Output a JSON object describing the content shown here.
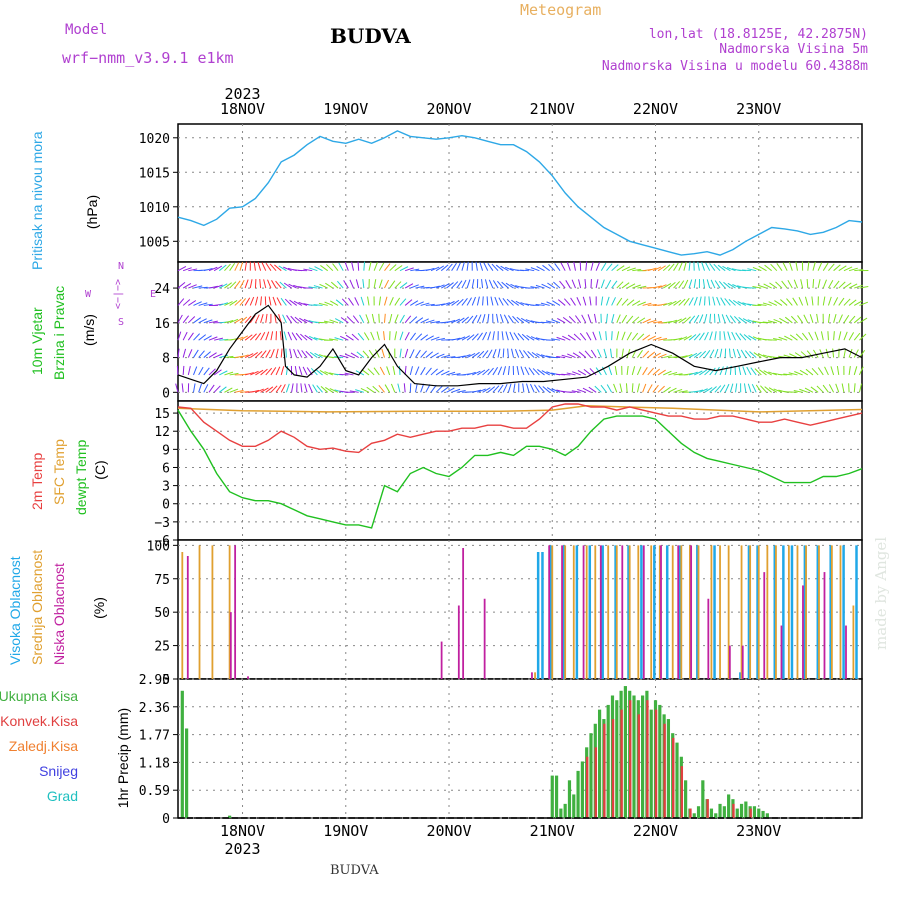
{
  "header": {
    "model_label": "Model",
    "model_name": "wrf−nmm_v3.9.1  e1km",
    "station": "BUDVA",
    "meteogram": "Meteogram",
    "lonlat": "lon,lat (18.8125E, 42.2875N)",
    "elevation": "Nadmorska Visina 5m",
    "model_elevation": "Nadmorska Visina u modelu 60.4388m",
    "footer_station": "BUDVA",
    "credit": "made by Angel"
  },
  "colors": {
    "pressure": "#2ea8e6",
    "t2m": "#e84040",
    "sfc": "#e0a030",
    "dewpt": "#20c020",
    "high_cloud": "#20a8e8",
    "mid_cloud": "#e0a030",
    "low_cloud": "#c020a0",
    "total_precip": "#40b040",
    "conv_precip": "#e04040",
    "freezing": "#f08030",
    "snow": "#4040e0",
    "hail": "#20c0c0"
  },
  "time_axis": {
    "days": [
      "18NOV",
      "19NOV",
      "20NOV",
      "21NOV",
      "22NOV",
      "23NOV"
    ],
    "year": "2023",
    "start_hour": -15,
    "end_hour": 144
  },
  "panels": {
    "pressure": {
      "title": "Pritisak na nivou mora",
      "unit": "(hPa)",
      "ticks": [
        "1005",
        "1010",
        "1015",
        "1020"
      ],
      "ylim": [
        1002,
        1022
      ]
    },
    "wind": {
      "title1": "10m Vjetar",
      "title2": "Brzina i Pravac",
      "unit": "(m/s)",
      "ticks": [
        "0",
        "8",
        "16",
        "24"
      ],
      "ylim": [
        -2,
        30
      ],
      "compass_n": "N",
      "compass_e": "E",
      "compass_s": "S",
      "compass_w": "W",
      "compass_symbol": "<−|−>"
    },
    "temp": {
      "title1": "2m Temp",
      "title2": "SFC Temp",
      "title3": "dewpt Temp",
      "unit": "(C)",
      "ticks": [
        "−6",
        "−3",
        "0",
        "3",
        "6",
        "9",
        "12",
        "15"
      ],
      "ylim": [
        -6,
        17
      ]
    },
    "cloud": {
      "title1": "Visoka Oblacnost",
      "title2": "Srednja Oblacnost",
      "title3": "Niska Oblacnost",
      "unit": "(%)",
      "ticks": [
        "0",
        "25",
        "50",
        "75",
        "100"
      ],
      "ylim": [
        0,
        104
      ]
    },
    "precip": {
      "label": "1hr Precip (mm)",
      "ticks": [
        "0",
        "0.59",
        "1.18",
        "1.77",
        "2.36",
        "2.95"
      ],
      "ylim": [
        0,
        2.95
      ],
      "legend": [
        "Ukupna  Kisa",
        "Konvek.Kisa",
        "Zaledj.Kisa",
        "Snijeg",
        "Grad"
      ]
    }
  },
  "chart_data": [
    {
      "type": "line",
      "title": "Pritisak na nivou mora",
      "ylabel": "(hPa)",
      "x_unit": "hours from 18NOV 00Z",
      "series": [
        {
          "x": [
            -15,
            -12,
            -9,
            -6,
            -3,
            0,
            3,
            6,
            9,
            12,
            15,
            18,
            21,
            24,
            27,
            30,
            33,
            36,
            39,
            42,
            45,
            48,
            51,
            54,
            57,
            60,
            63,
            66,
            69,
            72,
            75,
            78,
            81,
            84,
            87,
            90,
            93,
            96,
            99,
            102,
            105,
            108,
            111,
            114,
            117,
            120,
            123,
            126,
            129,
            132,
            135,
            138,
            141,
            144
          ],
          "y": [
            1008.5,
            1008,
            1007.3,
            1008.2,
            1009.8,
            1010,
            1011.2,
            1013.5,
            1016.5,
            1017.5,
            1019,
            1020.2,
            1019.5,
            1019.2,
            1019.8,
            1019.2,
            1020,
            1021,
            1020.2,
            1020,
            1019.8,
            1020,
            1020.3,
            1020,
            1019.5,
            1019,
            1019,
            1018,
            1016.5,
            1014.5,
            1012,
            1010,
            1008.5,
            1007,
            1006,
            1005,
            1004.5,
            1004,
            1003.5,
            1003,
            1003.2,
            1003.5,
            1003,
            1003.8,
            1005,
            1006,
            1007,
            1006.8,
            1006.5,
            1006,
            1006.3,
            1007,
            1008,
            1007.8
          ]
        }
      ]
    },
    {
      "type": "line",
      "title": "10m Vjetar Brzina i Pravac",
      "ylabel": "(m/s)",
      "series": [
        {
          "x": [
            -15,
            -12,
            -9,
            -6,
            -3,
            0,
            3,
            6,
            9,
            10,
            12,
            15,
            18,
            21,
            24,
            27,
            30,
            33,
            36,
            40,
            45,
            50,
            55,
            60,
            65,
            70,
            75,
            80,
            85,
            90,
            95,
            100,
            105,
            110,
            115,
            120,
            125,
            130,
            135,
            140,
            144
          ],
          "y": [
            4,
            3,
            2,
            5,
            10,
            14,
            18,
            20,
            16,
            6,
            4,
            3.5,
            6,
            10,
            5,
            4,
            8,
            11,
            6,
            2,
            1.5,
            1.5,
            2,
            2,
            2.5,
            2.5,
            3,
            3.5,
            6,
            9,
            11,
            9,
            6,
            5,
            6,
            7,
            8,
            8,
            9,
            10,
            8
          ]
        }
      ]
    },
    {
      "type": "line",
      "title": "2m Temp / SFC Temp / dewpt Temp",
      "ylabel": "(C)",
      "series": [
        {
          "name": "2m Temp",
          "x": [
            -15,
            -12,
            -9,
            -6,
            -3,
            0,
            3,
            6,
            9,
            12,
            15,
            18,
            21,
            24,
            27,
            30,
            33,
            36,
            39,
            42,
            45,
            48,
            51,
            54,
            57,
            60,
            63,
            66,
            69,
            72,
            75,
            78,
            81,
            84,
            87,
            90,
            93,
            96,
            99,
            102,
            105,
            108,
            111,
            114,
            117,
            120,
            123,
            126,
            129,
            132,
            135,
            138,
            141,
            144
          ],
          "y": [
            16,
            15.8,
            13.5,
            12,
            10.5,
            9.5,
            9.5,
            10.5,
            12,
            11,
            9.5,
            9,
            9.2,
            8.7,
            8.5,
            10,
            10.5,
            11.5,
            11,
            11.5,
            12,
            12,
            12.5,
            12.5,
            13,
            13,
            12.5,
            12.5,
            14,
            16,
            16.5,
            16.5,
            16,
            16,
            15.5,
            16,
            15.5,
            15,
            14.5,
            14.5,
            14,
            14,
            14.5,
            14.5,
            14,
            13.5,
            13.5,
            14,
            13.5,
            13,
            13.5,
            14,
            14.5,
            15
          ]
        },
        {
          "name": "SFC Temp",
          "x": [
            -15,
            0,
            20,
            40,
            60,
            72,
            80,
            100,
            120,
            144
          ],
          "y": [
            15.8,
            15.4,
            15.2,
            15.3,
            15.3,
            15.5,
            16.2,
            15.8,
            15.2,
            15.6
          ]
        },
        {
          "name": "dewpt Temp",
          "x": [
            -15,
            -12,
            -9,
            -6,
            -3,
            0,
            3,
            6,
            9,
            12,
            15,
            18,
            21,
            24,
            27,
            30,
            33,
            36,
            39,
            42,
            45,
            48,
            51,
            54,
            57,
            60,
            63,
            66,
            69,
            72,
            75,
            78,
            81,
            84,
            87,
            90,
            93,
            96,
            99,
            102,
            105,
            108,
            111,
            114,
            117,
            120,
            123,
            126,
            129,
            132,
            135,
            138,
            141,
            144
          ],
          "y": [
            15.5,
            12,
            9,
            5,
            2,
            1,
            0.5,
            0.5,
            0,
            -1,
            -2,
            -2.5,
            -3,
            -3.5,
            -3.5,
            -4,
            3,
            2,
            5,
            6,
            5,
            4.5,
            6,
            8,
            8,
            8.5,
            8,
            9.5,
            9.5,
            9,
            8,
            9.5,
            12,
            14,
            14.5,
            14.5,
            14.5,
            14,
            12,
            10,
            8.5,
            7.5,
            7,
            6.5,
            6,
            5.5,
            4.5,
            3.5,
            3.5,
            3.5,
            4.5,
            4.5,
            5,
            5.8
          ]
        }
      ]
    },
    {
      "type": "bar",
      "title": "Oblacnost",
      "ylabel": "(%)",
      "series": [
        {
          "name": "Visoka Oblacnost",
          "x": [
            69,
            70,
            72,
            75,
            78,
            81,
            84,
            87,
            90,
            93,
            96,
            99,
            102,
            106,
            110,
            116,
            118,
            120,
            124,
            126,
            128,
            131,
            134,
            137,
            140,
            143
          ],
          "y": [
            95,
            95,
            100,
            100,
            100,
            100,
            100,
            100,
            100,
            100,
            100,
            100,
            100,
            100,
            100,
            5,
            100,
            100,
            100,
            100,
            100,
            100,
            100,
            100,
            100,
            100
          ]
        },
        {
          "name": "Srednja Oblacnost",
          "x": [
            -14,
            -10,
            -7,
            -3,
            68,
            72,
            75,
            77,
            80,
            82,
            85,
            87,
            90,
            92,
            95,
            97,
            100,
            102,
            104,
            106,
            109,
            111,
            113,
            116,
            118,
            120,
            122,
            124,
            127,
            129,
            131,
            134,
            137,
            139,
            142
          ],
          "y": [
            95,
            100,
            100,
            100,
            5,
            100,
            100,
            100,
            100,
            100,
            100,
            100,
            100,
            100,
            100,
            100,
            100,
            100,
            100,
            100,
            100,
            100,
            100,
            100,
            100,
            100,
            100,
            100,
            100,
            100,
            100,
            100,
            100,
            100,
            55
          ]
        },
        {
          "name": "Niska Oblacnost",
          "x": [
            -13,
            -3,
            -2,
            1,
            46,
            50,
            51,
            56,
            67,
            71,
            74,
            79,
            83,
            88,
            93,
            97,
            101,
            104,
            108,
            113,
            116,
            121,
            125,
            130,
            135,
            140
          ],
          "y": [
            92,
            50,
            100,
            2,
            28,
            55,
            98,
            60,
            5,
            100,
            100,
            100,
            100,
            100,
            100,
            100,
            100,
            100,
            60,
            25,
            25,
            80,
            40,
            70,
            80,
            40
          ]
        }
      ]
    },
    {
      "type": "bar",
      "title": "1hr Precip",
      "ylabel": "(mm)",
      "series": [
        {
          "name": "Ukupna  Kisa",
          "x": [
            -14,
            -13,
            -3,
            72,
            73,
            74,
            75,
            76,
            77,
            78,
            79,
            80,
            81,
            82,
            83,
            84,
            85,
            86,
            87,
            88,
            89,
            90,
            91,
            92,
            93,
            94,
            95,
            96,
            97,
            98,
            99,
            100,
            101,
            102,
            103,
            104,
            105,
            106,
            107,
            108,
            109,
            110,
            111,
            112,
            113,
            114,
            115,
            116,
            117,
            118,
            119,
            120,
            121,
            122
          ],
          "y": [
            2.7,
            1.9,
            0.05,
            0.9,
            0.9,
            0.2,
            0.3,
            0.8,
            0.5,
            1.0,
            1.2,
            1.5,
            1.8,
            2.0,
            2.3,
            2.1,
            2.4,
            2.6,
            2.5,
            2.7,
            2.8,
            2.7,
            2.6,
            2.5,
            2.6,
            2.7,
            2.3,
            2.5,
            2.4,
            2.2,
            2.1,
            1.8,
            1.6,
            1.3,
            0.8,
            0.2,
            0.1,
            0.25,
            0.8,
            0.4,
            0.2,
            0.1,
            0.3,
            0.25,
            0.5,
            0.4,
            0.2,
            0.3,
            0.35,
            0.25,
            0.25,
            0.2,
            0.15,
            0.1
          ]
        },
        {
          "name": "Konvek.Kisa",
          "x": [
            80,
            82,
            84,
            86,
            88,
            90,
            92,
            94,
            96,
            98,
            100,
            102,
            104,
            108,
            114,
            118
          ],
          "y": [
            1.3,
            1.5,
            2.0,
            2.1,
            2.3,
            2.5,
            2.2,
            2.5,
            2.3,
            2.0,
            1.7,
            1.1,
            0.2,
            0.4,
            0.3,
            0.2
          ]
        }
      ]
    }
  ]
}
